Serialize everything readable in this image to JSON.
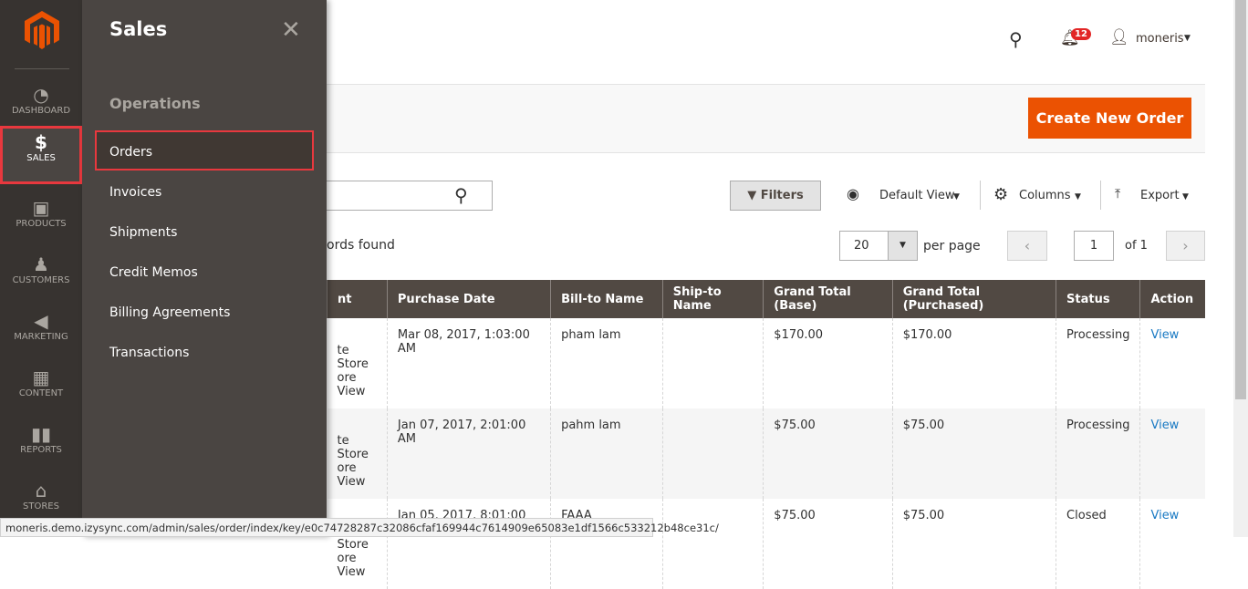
{
  "nav": {
    "items": [
      {
        "label": "DASHBOARD",
        "icon": "dashboard-icon"
      },
      {
        "label": "SALES",
        "icon": "dollar-icon"
      },
      {
        "label": "PRODUCTS",
        "icon": "box-icon"
      },
      {
        "label": "CUSTOMERS",
        "icon": "person-icon"
      },
      {
        "label": "MARKETING",
        "icon": "megaphone-icon"
      },
      {
        "label": "CONTENT",
        "icon": "layout-icon"
      },
      {
        "label": "REPORTS",
        "icon": "bar-chart-icon"
      },
      {
        "label": "STORES",
        "icon": "store-icon"
      }
    ],
    "active": "SALES"
  },
  "flyout": {
    "title": "Sales",
    "section": "Operations",
    "items": [
      "Orders",
      "Invoices",
      "Shipments",
      "Credit Memos",
      "Billing Agreements",
      "Transactions"
    ]
  },
  "header": {
    "notifications": "12",
    "user": "moneris"
  },
  "actions": {
    "create": "Create New Order"
  },
  "toolbar": {
    "filters": "Filters",
    "view": "Default View",
    "columns": "Columns",
    "export": "Export",
    "records": "ords found",
    "per_page_value": "20",
    "per_page_label": "per page",
    "page": "1",
    "of": "of 1"
  },
  "table": {
    "headers": [
      "nt",
      "Purchase Date",
      "Bill-to Name",
      "Ship-to Name",
      "Grand Total (Base)",
      "Grand Total (Purchased)",
      "Status",
      "Action"
    ],
    "rows": [
      {
        "store1": "te Store",
        "store2": "ore View",
        "date": "Mar 08, 2017, 1:03:00 AM",
        "bill": "pham lam",
        "ship": "",
        "base": "$170.00",
        "purchased": "$170.00",
        "status": "Processing",
        "action": "View"
      },
      {
        "store1": "te Store",
        "store2": "ore View",
        "date": "Jan 07, 2017, 2:01:00 AM",
        "bill": "pahm lam",
        "ship": "",
        "base": "$75.00",
        "purchased": "$75.00",
        "status": "Processing",
        "action": "View"
      },
      {
        "store1": "te Store",
        "store2": "ore View",
        "date": "Jan 05, 2017, 8:01:00 AM",
        "bill": "FAAA Lammmm",
        "ship": "",
        "base": "$75.00",
        "purchased": "$75.00",
        "status": "Closed",
        "action": "View"
      }
    ]
  },
  "statusbar": "moneris.demo.izysync.com/admin/sales/order/index/key/e0c74728287c32086cfaf169944c7614909e65083e1df1566c533212b48ce31c/",
  "colors": {
    "accent": "#eb5202",
    "nav": "#373330",
    "highlight": "#e8383e"
  }
}
